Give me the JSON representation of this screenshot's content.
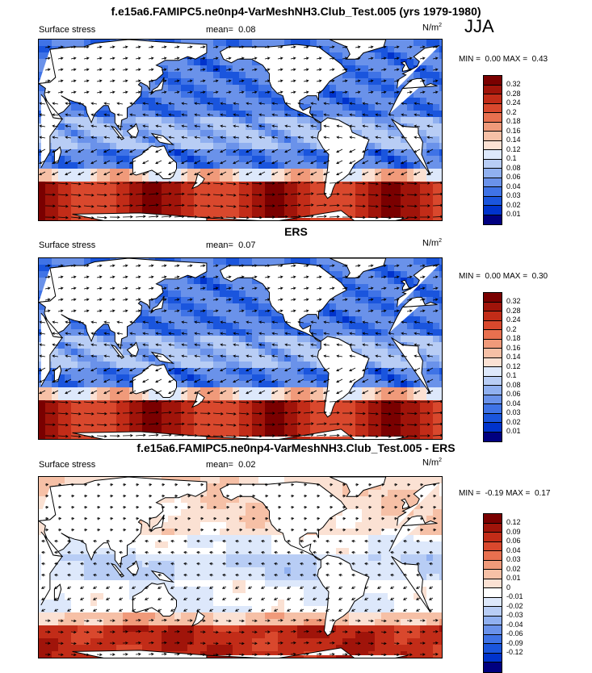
{
  "season": "JJA",
  "colors": {
    "land": "#ffffff",
    "coast": "#000000",
    "abs_scale": [
      "#000080",
      "#0033cc",
      "#1a55dd",
      "#3f73e6",
      "#6a92ea",
      "#90b0f0",
      "#b8cdf5",
      "#dde8fb",
      "#fbe1d3",
      "#f6c0a6",
      "#f09a7a",
      "#e8704f",
      "#d9482d",
      "#c22c18",
      "#a0140a",
      "#7a0000"
    ],
    "diff_scale": [
      "#000080",
      "#0033cc",
      "#1a55dd",
      "#3f73e6",
      "#6a92ea",
      "#90b0f0",
      "#b8cdf5",
      "#dde8fb",
      "#ffffff",
      "#fbe1d3",
      "#f6c0a6",
      "#f09a7a",
      "#e8704f",
      "#d9482d",
      "#c22c18",
      "#a0140a",
      "#7a0000"
    ]
  },
  "panels": [
    {
      "title": "f.e15a6.FAMIPC5.ne0np4-VarMeshNH3.Club_Test.005 (yrs 1979-1980)",
      "variable": "Surface stress",
      "mean_label": "mean=",
      "mean_value": "0.08",
      "units": "N/m",
      "units_exp": "2",
      "min_label": "MIN =",
      "min_value": "0.00",
      "max_label": "MAX =",
      "max_value": "0.43",
      "levels": [
        "0.32",
        "0.28",
        "0.24",
        "0.2",
        "0.18",
        "0.16",
        "0.14",
        "0.12",
        "0.1",
        "0.08",
        "0.06",
        "0.04",
        "0.03",
        "0.02",
        "0.01"
      ]
    },
    {
      "title": "ERS",
      "variable": "Surface stress",
      "mean_label": "mean=",
      "mean_value": "0.07",
      "units": "N/m",
      "units_exp": "2",
      "min_label": "MIN =",
      "min_value": "0.00",
      "max_label": "MAX =",
      "max_value": "0.30",
      "levels": [
        "0.32",
        "0.28",
        "0.24",
        "0.2",
        "0.18",
        "0.16",
        "0.14",
        "0.12",
        "0.1",
        "0.08",
        "0.06",
        "0.04",
        "0.03",
        "0.02",
        "0.01"
      ]
    },
    {
      "title": "f.e15a6.FAMIPC5.ne0np4-VarMeshNH3.Club_Test.005 - ERS",
      "variable": "Surface stress",
      "mean_label": "mean=",
      "mean_value": "0.02",
      "units": "N/m",
      "units_exp": "2",
      "min_label": "MIN =",
      "min_value": "-0.19",
      "max_label": "MAX =",
      "max_value": "0.17",
      "levels": [
        "0.12",
        "0.09",
        "0.06",
        "0.04",
        "0.03",
        "0.02",
        "0.01",
        "0",
        "-0.01",
        "-0.02",
        "-0.03",
        "-0.04",
        "-0.06",
        "-0.09",
        "-0.12"
      ]
    }
  ]
}
